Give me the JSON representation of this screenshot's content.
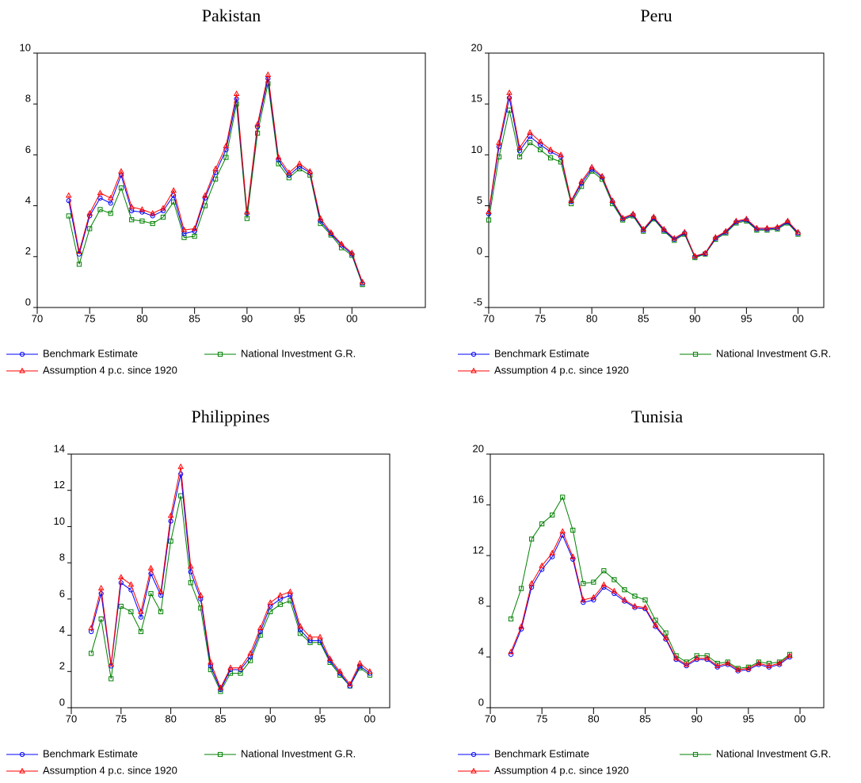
{
  "chart_data": [
    {
      "type": "line",
      "title": "Pakistan",
      "x": [
        1973,
        1974,
        1975,
        1976,
        1977,
        1978,
        1979,
        1980,
        1981,
        1982,
        1983,
        1984,
        1985,
        1986,
        1987,
        1988,
        1989,
        1990,
        1991,
        1992,
        1993,
        1994,
        1995,
        1996,
        1997,
        1998,
        1999,
        2000,
        2001
      ],
      "series": [
        {
          "name": "Benchmark Estimate",
          "color": "#0000ff",
          "marker": "circle",
          "values": [
            4.2,
            2.1,
            3.6,
            4.3,
            4.1,
            5.2,
            3.8,
            3.75,
            3.6,
            3.8,
            4.4,
            2.9,
            3.0,
            4.3,
            5.3,
            6.2,
            8.2,
            3.7,
            7.1,
            9.0,
            5.8,
            5.2,
            5.55,
            5.3,
            3.4,
            2.9,
            2.45,
            2.1,
            0.95
          ]
        },
        {
          "name": "National Investment G.R.",
          "color": "#008000",
          "marker": "square",
          "values": [
            3.6,
            1.7,
            3.1,
            3.85,
            3.7,
            4.7,
            3.45,
            3.4,
            3.3,
            3.55,
            4.15,
            2.75,
            2.8,
            4.0,
            5.05,
            5.9,
            8.0,
            3.5,
            6.85,
            8.8,
            5.65,
            5.1,
            5.45,
            5.2,
            3.3,
            2.85,
            2.35,
            2.05,
            0.9
          ]
        },
        {
          "name": "Assumption 4 p.c. since 1920",
          "color": "#ff0000",
          "marker": "triangle",
          "values": [
            4.4,
            2.2,
            3.7,
            4.5,
            4.3,
            5.35,
            3.95,
            3.85,
            3.7,
            3.9,
            4.6,
            3.05,
            3.1,
            4.4,
            5.45,
            6.35,
            8.4,
            3.75,
            7.2,
            9.15,
            5.9,
            5.3,
            5.65,
            5.35,
            3.5,
            2.95,
            2.5,
            2.15,
            1.0
          ]
        }
      ],
      "xlim": [
        1970,
        2007
      ],
      "xticks": [
        {
          "value": 1970,
          "label": "70"
        },
        {
          "value": 1975,
          "label": "75"
        },
        {
          "value": 1980,
          "label": "80"
        },
        {
          "value": 1985,
          "label": "85"
        },
        {
          "value": 1990,
          "label": "90"
        },
        {
          "value": 1995,
          "label": "95"
        },
        {
          "value": 2000,
          "label": "00"
        }
      ],
      "ylim": [
        0,
        10
      ],
      "yticks": [
        0,
        2,
        4,
        6,
        8,
        10
      ]
    },
    {
      "type": "line",
      "title": "Peru",
      "x": [
        1970,
        1971,
        1972,
        1973,
        1974,
        1975,
        1976,
        1977,
        1978,
        1979,
        1980,
        1981,
        1982,
        1983,
        1984,
        1985,
        1986,
        1987,
        1988,
        1989,
        1990,
        1991,
        1992,
        1993,
        1994,
        1995,
        1996,
        1997,
        1998,
        1999,
        2000
      ],
      "series": [
        {
          "name": "Benchmark Estimate",
          "color": "#0000ff",
          "marker": "circle",
          "values": [
            4.2,
            10.8,
            15.6,
            10.4,
            11.8,
            11.0,
            10.3,
            9.8,
            5.4,
            7.2,
            8.6,
            7.8,
            5.4,
            3.7,
            4.1,
            2.6,
            3.8,
            2.6,
            1.7,
            2.3,
            0.0,
            0.3,
            1.8,
            2.4,
            3.4,
            3.6,
            2.7,
            2.7,
            2.8,
            3.4,
            2.3
          ]
        },
        {
          "name": "National Investment G.R.",
          "color": "#008000",
          "marker": "square",
          "values": [
            3.6,
            9.8,
            14.4,
            9.8,
            11.2,
            10.5,
            9.7,
            9.3,
            5.2,
            6.9,
            8.4,
            7.6,
            5.2,
            3.6,
            4.0,
            2.5,
            3.7,
            2.5,
            1.6,
            2.2,
            -0.1,
            0.25,
            1.7,
            2.3,
            3.3,
            3.5,
            2.6,
            2.6,
            2.7,
            3.3,
            2.2
          ]
        },
        {
          "name": "Assumption 4 p.c. since 1920",
          "color": "#ff0000",
          "marker": "triangle",
          "values": [
            4.4,
            11.2,
            16.1,
            10.7,
            12.2,
            11.3,
            10.5,
            10.0,
            5.5,
            7.4,
            8.8,
            7.9,
            5.5,
            3.8,
            4.2,
            2.7,
            3.9,
            2.7,
            1.8,
            2.4,
            0.05,
            0.35,
            1.9,
            2.5,
            3.5,
            3.7,
            2.8,
            2.8,
            2.9,
            3.5,
            2.4
          ]
        }
      ],
      "xlim": [
        1970,
        2002.5
      ],
      "xticks": [
        {
          "value": 1970,
          "label": "70"
        },
        {
          "value": 1975,
          "label": "75"
        },
        {
          "value": 1980,
          "label": "80"
        },
        {
          "value": 1985,
          "label": "85"
        },
        {
          "value": 1990,
          "label": "90"
        },
        {
          "value": 1995,
          "label": "95"
        },
        {
          "value": 2000,
          "label": "00"
        }
      ],
      "ylim": [
        -5,
        20
      ],
      "yticks": [
        -5,
        0,
        5,
        10,
        15,
        20
      ]
    },
    {
      "type": "line",
      "title": "Philippines",
      "x": [
        1972,
        1973,
        1974,
        1975,
        1976,
        1977,
        1978,
        1979,
        1980,
        1981,
        1982,
        1983,
        1984,
        1985,
        1986,
        1987,
        1988,
        1989,
        1990,
        1991,
        1992,
        1993,
        1994,
        1995,
        1996,
        1997,
        1998,
        1999,
        2000
      ],
      "series": [
        {
          "name": "Benchmark Estimate",
          "color": "#0000ff",
          "marker": "circle",
          "values": [
            4.2,
            6.3,
            2.3,
            6.9,
            6.5,
            5.0,
            7.4,
            6.2,
            10.3,
            12.9,
            7.5,
            6.0,
            2.3,
            1.0,
            2.1,
            2.1,
            2.8,
            4.2,
            5.6,
            6.0,
            6.2,
            4.3,
            3.7,
            3.7,
            2.6,
            1.9,
            1.2,
            2.3,
            1.9
          ]
        },
        {
          "name": "National Investment G.R.",
          "color": "#008000",
          "marker": "square",
          "values": [
            3.0,
            4.9,
            1.6,
            5.6,
            5.3,
            4.2,
            6.3,
            5.3,
            9.2,
            11.7,
            6.9,
            5.5,
            2.1,
            0.9,
            1.9,
            1.9,
            2.6,
            4.0,
            5.3,
            5.7,
            5.9,
            4.1,
            3.6,
            3.6,
            2.5,
            1.8,
            1.2,
            2.2,
            1.8
          ]
        },
        {
          "name": "Assumption 4 p.c. since 1920",
          "color": "#ff0000",
          "marker": "triangle",
          "values": [
            4.4,
            6.6,
            2.4,
            7.2,
            6.8,
            5.3,
            7.7,
            6.4,
            10.6,
            13.3,
            7.8,
            6.2,
            2.5,
            1.1,
            2.2,
            2.2,
            3.0,
            4.4,
            5.8,
            6.2,
            6.4,
            4.5,
            3.9,
            3.9,
            2.7,
            2.0,
            1.3,
            2.45,
            2.0
          ]
        }
      ],
      "xlim": [
        1970,
        2002
      ],
      "xticks": [
        {
          "value": 1970,
          "label": "70"
        },
        {
          "value": 1975,
          "label": "75"
        },
        {
          "value": 1980,
          "label": "80"
        },
        {
          "value": 1985,
          "label": "85"
        },
        {
          "value": 1990,
          "label": "90"
        },
        {
          "value": 1995,
          "label": "95"
        },
        {
          "value": 2000,
          "label": "00"
        }
      ],
      "ylim": [
        0,
        14
      ],
      "yticks": [
        0,
        2,
        4,
        6,
        8,
        10,
        12,
        14
      ]
    },
    {
      "type": "line",
      "title": "Tunisia",
      "x": [
        1972,
        1973,
        1974,
        1975,
        1976,
        1977,
        1978,
        1979,
        1980,
        1981,
        1982,
        1983,
        1984,
        1985,
        1986,
        1987,
        1988,
        1989,
        1990,
        1991,
        1992,
        1993,
        1994,
        1995,
        1996,
        1997,
        1998,
        1999
      ],
      "series": [
        {
          "name": "Benchmark Estimate",
          "color": "#0000ff",
          "marker": "circle",
          "values": [
            4.2,
            6.2,
            9.5,
            10.9,
            11.9,
            13.6,
            11.7,
            8.3,
            8.5,
            9.5,
            9.0,
            8.4,
            7.9,
            7.8,
            6.4,
            5.4,
            3.8,
            3.3,
            3.8,
            3.8,
            3.2,
            3.4,
            2.9,
            3.0,
            3.4,
            3.2,
            3.4,
            4.0
          ]
        },
        {
          "name": "National Investment G.R.",
          "color": "#008000",
          "marker": "square",
          "values": [
            7.0,
            9.4,
            13.3,
            14.5,
            15.2,
            16.6,
            14.0,
            9.8,
            9.9,
            10.8,
            10.1,
            9.3,
            8.8,
            8.5,
            6.9,
            5.9,
            4.1,
            3.6,
            4.1,
            4.1,
            3.5,
            3.6,
            3.1,
            3.2,
            3.6,
            3.5,
            3.6,
            4.2
          ]
        },
        {
          "name": "Assumption 4 p.c. since 1920",
          "color": "#ff0000",
          "marker": "triangle",
          "values": [
            4.4,
            6.4,
            9.8,
            11.2,
            12.2,
            13.9,
            11.9,
            8.5,
            8.7,
            9.7,
            9.2,
            8.5,
            8.0,
            7.9,
            6.5,
            5.5,
            3.9,
            3.4,
            3.9,
            3.9,
            3.3,
            3.5,
            3.0,
            3.1,
            3.5,
            3.3,
            3.5,
            4.1
          ]
        }
      ],
      "xlim": [
        1970,
        2002.3
      ],
      "xticks": [
        {
          "value": 1970,
          "label": "70"
        },
        {
          "value": 1975,
          "label": "75"
        },
        {
          "value": 1980,
          "label": "80"
        },
        {
          "value": 1985,
          "label": "85"
        },
        {
          "value": 1990,
          "label": "90"
        },
        {
          "value": 1995,
          "label": "95"
        },
        {
          "value": 2000,
          "label": "00"
        }
      ],
      "ylim": [
        0,
        20
      ],
      "yticks": [
        0,
        4,
        8,
        12,
        16,
        20
      ]
    }
  ]
}
